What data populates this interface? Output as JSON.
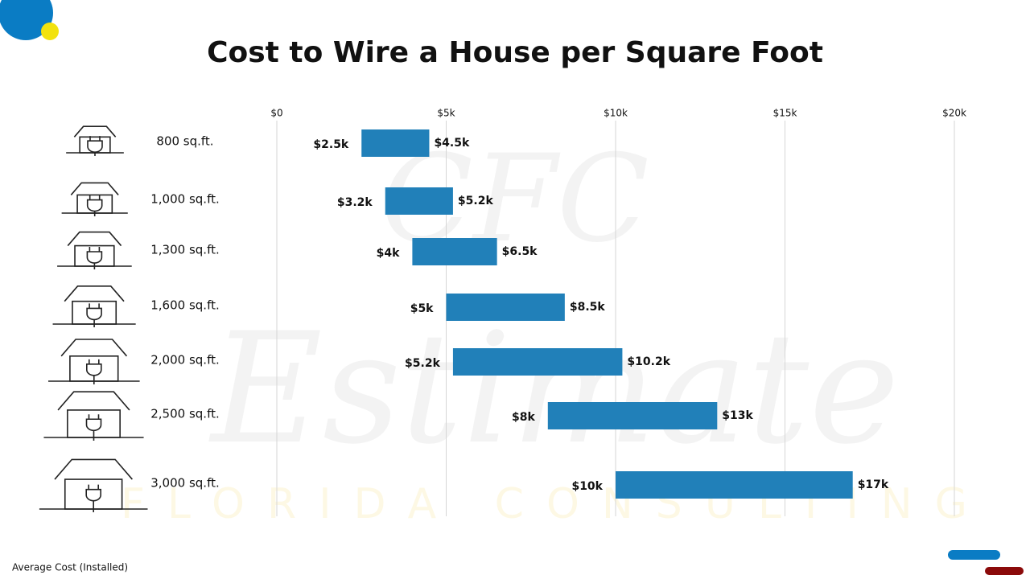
{
  "chart_data": {
    "type": "range-bar",
    "title": "Cost to Wire a House per Square Foot",
    "footnote": "Average Cost (Installed)",
    "watermark": [
      "CFC",
      "Estimate",
      "FLORIDA CONSULTING"
    ],
    "categories": [
      "800 sq.ft.",
      "1,000 sq.ft.",
      "1,300 sq.ft.",
      "1,600 sq.ft.",
      "2,000 sq.ft.",
      "2,500 sq.ft.",
      "3,000 sq.ft."
    ],
    "color": "#2180b9",
    "series": [
      {
        "values": [
          2500,
          3200,
          4000,
          5000,
          5200,
          8000,
          10000
        ],
        "value_labels": [
          "$2.5k",
          "$3.2k",
          "$4k",
          "$5k",
          "$5.2k",
          "$8k",
          "$10k"
        ]
      },
      {
        "values": [
          4500,
          5200,
          6500,
          8500,
          10200,
          13000,
          17000
        ],
        "value_labels": [
          "$4.5k",
          "$5.2k",
          "$6.5k",
          "$8.5k",
          "$10.2k",
          "$13k",
          "$17k"
        ]
      }
    ],
    "xlim": [
      0,
      20000
    ],
    "xticks": [
      {
        "value": 0,
        "label": "$0"
      },
      {
        "value": 5000,
        "label": "$5k"
      },
      {
        "value": 10000,
        "label": "$10k"
      },
      {
        "value": 15000,
        "label": "$15k"
      },
      {
        "value": 20000,
        "label": "$20k"
      }
    ],
    "grid": true
  }
}
